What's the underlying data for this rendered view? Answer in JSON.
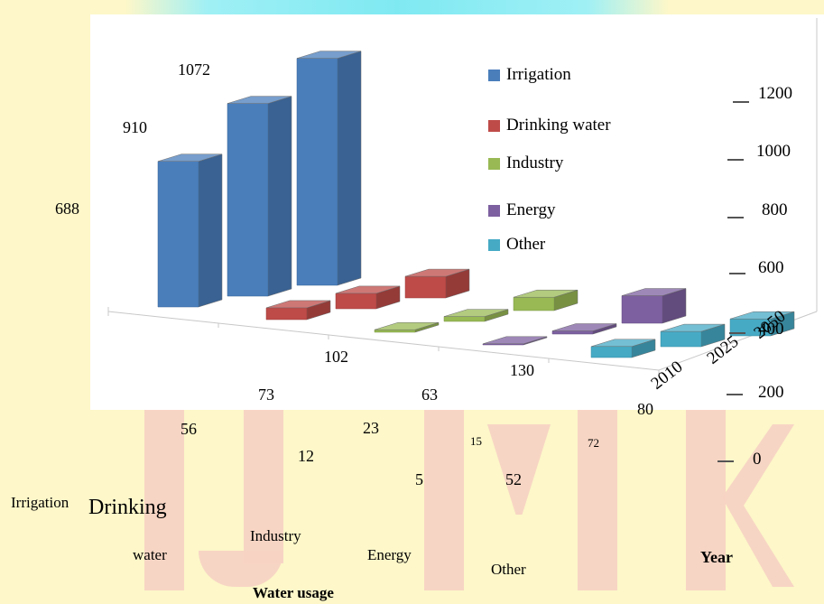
{
  "chart_data": {
    "type": "bar",
    "variant": "3d-clustered",
    "categories": [
      "Irrigation",
      "Drinking water",
      "Industry",
      "Energy",
      "Other"
    ],
    "category_label_lines": [
      [
        "Irrigation"
      ],
      [
        "Drinking",
        "water"
      ],
      [
        "Industry"
      ],
      [
        "Energy"
      ],
      [
        "Other"
      ]
    ],
    "series": [
      {
        "name": "2010",
        "values": [
          688,
          56,
          12,
          5,
          52
        ]
      },
      {
        "name": "2025",
        "values": [
          910,
          73,
          23,
          15,
          72
        ]
      },
      {
        "name": "2050",
        "values": [
          1072,
          102,
          63,
          130,
          80
        ]
      }
    ],
    "legend": [
      {
        "label": "Irrigation",
        "color": "#4a7ebb"
      },
      {
        "label": "Drinking water",
        "color": "#be4b48"
      },
      {
        "label": "Industry",
        "color": "#98b954"
      },
      {
        "label": "Energy",
        "color": "#7d60a0"
      },
      {
        "label": "Other",
        "color": "#46aac5"
      }
    ],
    "yticks": [
      "0",
      "200",
      "400",
      "600",
      "800",
      "1000",
      "1200"
    ],
    "ylim": [
      0,
      1200
    ],
    "depth_labels": [
      "2010",
      "2025",
      "2050"
    ],
    "xlabel": "Water usage",
    "zlabel": "Year",
    "legend_position": "right",
    "grid": false
  },
  "colors": {
    "background": "#fdf7c9",
    "watermark": "#f7d3c4",
    "plot_area": "#ffffff"
  }
}
